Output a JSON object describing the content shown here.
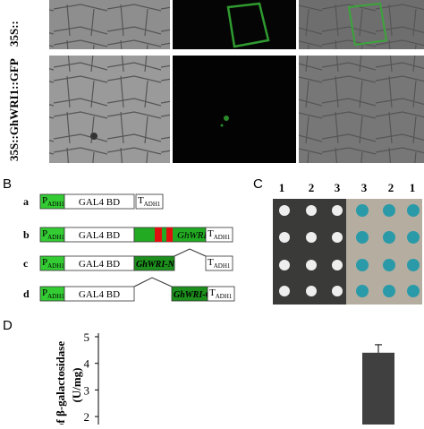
{
  "panel_a": {
    "row_labels": [
      "35S::",
      "35S::GhWRI1::GFP"
    ]
  },
  "panel_b": {
    "label": "B",
    "promoter": {
      "main": "P",
      "sub": "ADH1"
    },
    "domain": "GAL4 BD",
    "terminator": {
      "main": "T",
      "sub": "ADH1"
    },
    "rows": [
      {
        "id": "a"
      },
      {
        "id": "b",
        "insert": "GhWRI"
      },
      {
        "id": "c",
        "insert": "GhWRI-N"
      },
      {
        "id": "d",
        "insert": "GhWRI-C"
      }
    ]
  },
  "panel_c": {
    "label": "C",
    "left_numbers": [
      "1",
      "2",
      "3"
    ],
    "right_numbers": [
      "3",
      "2",
      "1"
    ]
  },
  "chart_data": {
    "type": "bar",
    "label": "D",
    "ylabel": [
      "of β-galactosidase",
      "(U/mg)"
    ],
    "categories": [
      null
    ],
    "values": [
      4.4
    ],
    "errors": [
      0.3
    ],
    "color": "#404040",
    "ylim": [
      1.7,
      5
    ],
    "yticks": [
      2,
      3,
      4,
      5
    ]
  }
}
